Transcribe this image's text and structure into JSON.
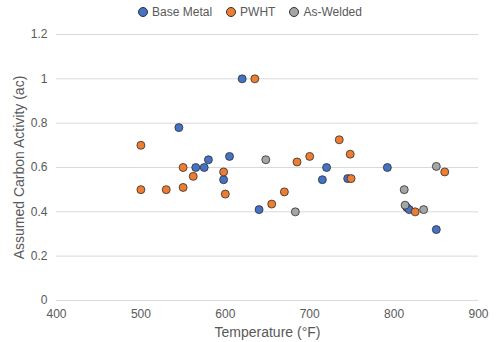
{
  "chart_data": {
    "type": "scatter",
    "x_label": "Temperature (°F)",
    "y_label": "Assumed Carbon Activity (ac)",
    "xlim": [
      400,
      900
    ],
    "xticks": [
      400,
      500,
      600,
      700,
      800,
      900
    ],
    "ylim": [
      0,
      1.2
    ],
    "yticks": [
      0,
      0.2,
      0.4,
      0.6,
      0.8,
      1,
      1.2
    ],
    "grid": true,
    "legend": "top",
    "marker": "circle",
    "series": [
      {
        "name": "Base Metal",
        "color": "#4472c4",
        "x": [
          545,
          565,
          575,
          580,
          598,
          605,
          620,
          640,
          715,
          720,
          745,
          792,
          815,
          818,
          850
        ],
        "values": [
          0.78,
          0.6,
          0.6,
          0.635,
          0.545,
          0.65,
          1.0,
          0.41,
          0.545,
          0.6,
          0.55,
          0.6,
          0.42,
          0.41,
          0.32
        ]
      },
      {
        "name": "PWHT",
        "color": "#ed7d31",
        "x": [
          500,
          500,
          530,
          550,
          550,
          562,
          598,
          600,
          635,
          655,
          670,
          685,
          700,
          735,
          748,
          749,
          825,
          860
        ],
        "values": [
          0.7,
          0.5,
          0.5,
          0.6,
          0.51,
          0.56,
          0.58,
          0.48,
          1.0,
          0.435,
          0.49,
          0.625,
          0.65,
          0.725,
          0.66,
          0.55,
          0.4,
          0.58
        ]
      },
      {
        "name": "As-Welded",
        "color": "#a5a5a5",
        "x": [
          648,
          683,
          812,
          813,
          835,
          850
        ],
        "values": [
          0.635,
          0.4,
          0.5,
          0.43,
          0.41,
          0.605
        ]
      }
    ]
  }
}
